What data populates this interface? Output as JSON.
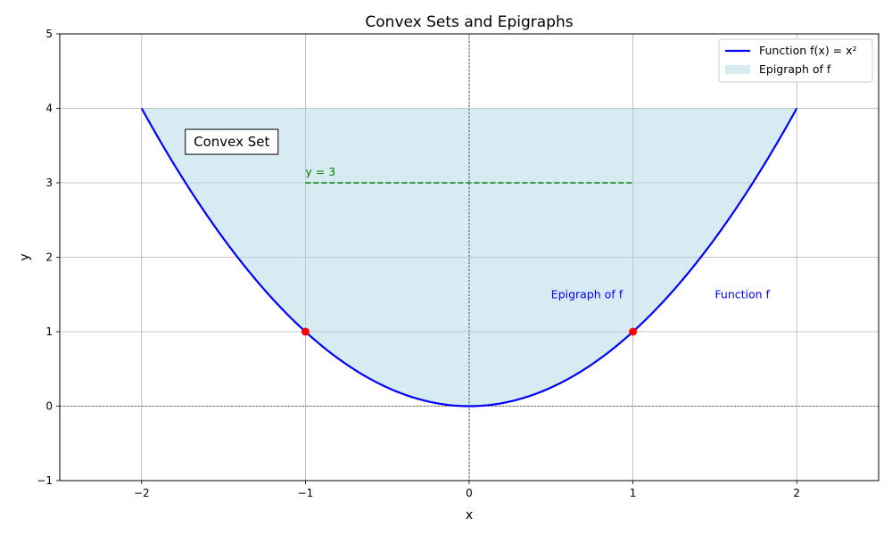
{
  "chart_data": {
    "type": "area",
    "title": "Convex Sets and Epigraphs",
    "xlabel": "x",
    "ylabel": "y",
    "xlim": [
      -2.5,
      2.5
    ],
    "ylim": [
      -1,
      5
    ],
    "xticks": [
      -2,
      -1,
      0,
      1,
      2
    ],
    "yticks": [
      -1,
      0,
      1,
      2,
      3,
      4,
      5
    ],
    "xtick_labels": [
      "−2",
      "−1",
      "0",
      "1",
      "2"
    ],
    "ytick_labels": [
      "−1",
      "0",
      "1",
      "2",
      "3",
      "4",
      "5"
    ],
    "grid": true,
    "legend_position": "top-right",
    "series": [
      {
        "name": "Function f(x) = x²",
        "kind": "line",
        "color": "#0000ff",
        "x_range": [
          -2,
          2
        ],
        "function": "x^2"
      },
      {
        "name": "Epigraph of f",
        "kind": "fill",
        "color": "#add8e6",
        "x_range": [
          -2,
          2
        ],
        "lower": "x^2",
        "upper": 4
      }
    ],
    "points": [
      {
        "x": -1,
        "y": 1,
        "color": "#ff0000"
      },
      {
        "x": 1,
        "y": 1,
        "color": "#ff0000"
      }
    ],
    "hline": {
      "y": 3,
      "x_range": [
        -1,
        1
      ],
      "color": "#008000",
      "label": "y = 3"
    },
    "reference_lines": {
      "x": 0,
      "y": 0
    },
    "annotations": [
      {
        "text": "Convex Set",
        "x": -1.45,
        "y": 3.55,
        "boxed": true,
        "color": "#000000"
      },
      {
        "text": "Epigraph of f",
        "x": 0.5,
        "y": 1.5,
        "color": "#0000ff"
      },
      {
        "text": "Function f",
        "x": 1.5,
        "y": 1.5,
        "color": "#0000ff"
      }
    ]
  }
}
